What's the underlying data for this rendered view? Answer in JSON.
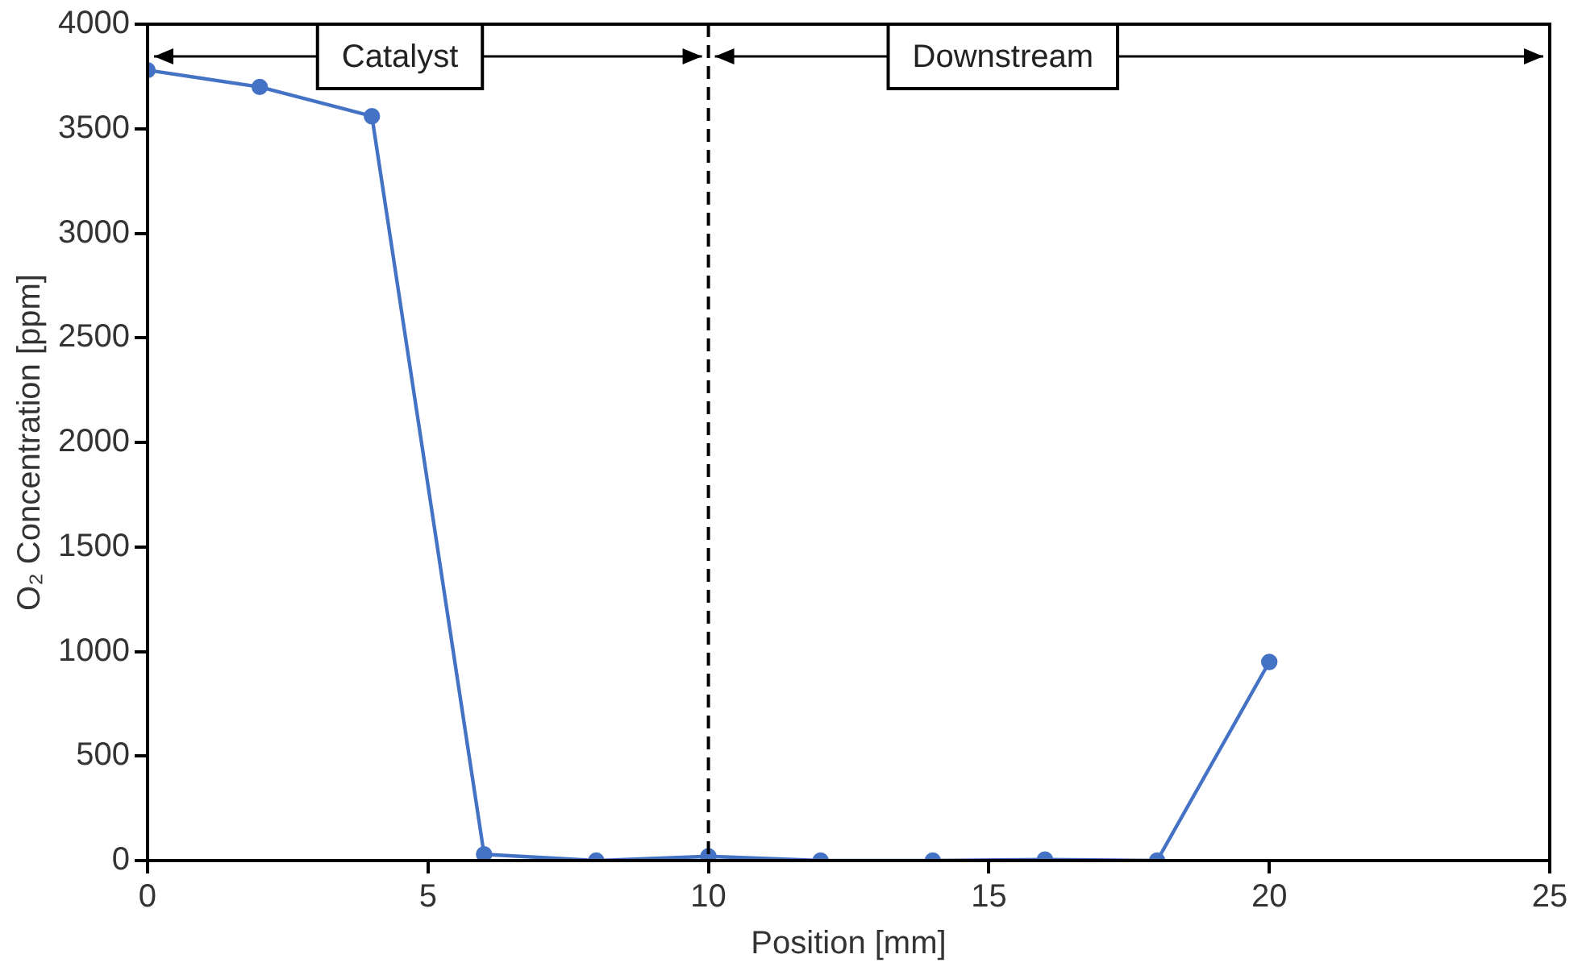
{
  "chart_data": {
    "type": "line",
    "xlabel": "Position [mm]",
    "ylabel": "O₂ Concentration [ppm]",
    "x": [
      0,
      2,
      4,
      6,
      8,
      10,
      12,
      14,
      16,
      18,
      20
    ],
    "series": [
      {
        "color": "#4472c4",
        "values": [
          3780,
          3700,
          3560,
          30,
          0,
          20,
          0,
          0,
          5,
          0,
          950
        ]
      }
    ],
    "xlim": [
      0,
      25
    ],
    "xticks": [
      0,
      5,
      10,
      15,
      20,
      25
    ],
    "ylim": [
      0,
      4000
    ],
    "yticks": [
      0,
      500,
      1000,
      1500,
      2000,
      2500,
      3000,
      3500,
      4000
    ],
    "grid": false,
    "legend": false,
    "marker": "circle",
    "line_style": "solid",
    "ref_lines": [
      {
        "axis": "x",
        "value": 10,
        "line_style": "dashed",
        "color": "#000000"
      }
    ],
    "annotations": [
      "Catalyst",
      "Downstream"
    ]
  }
}
